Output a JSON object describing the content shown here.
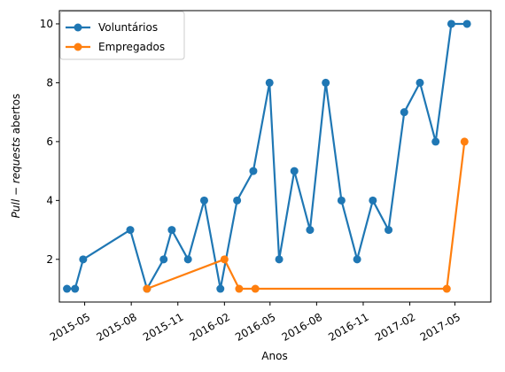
{
  "chart_data": {
    "type": "line",
    "xlabel": "Anos",
    "ylabel_italic": "Pull − requests",
    "ylabel_rest": " abertos",
    "x_ticks": [
      "2015-05",
      "2015-08",
      "2015-11",
      "2016-02",
      "2016-05",
      "2016-08",
      "2016-11",
      "2017-02",
      "2017-05"
    ],
    "y_ticks": [
      "2",
      "4",
      "6",
      "8",
      "10"
    ],
    "xlim": [
      "2015-03-12",
      "2017-07-11"
    ],
    "ylim": [
      0.55,
      10.45
    ],
    "legend_position": "top-left",
    "grid": false,
    "series": [
      {
        "name": "Voluntários",
        "color": "#1f77b4",
        "points": [
          [
            "2015-03-27",
            1
          ],
          [
            "2015-04-12",
            1
          ],
          [
            "2015-04-28",
            2
          ],
          [
            "2015-07-30",
            3
          ],
          [
            "2015-09-01",
            1
          ],
          [
            "2015-10-04",
            2
          ],
          [
            "2015-10-20",
            3
          ],
          [
            "2015-11-21",
            2
          ],
          [
            "2015-12-23",
            4
          ],
          [
            "2016-01-24",
            1
          ],
          [
            "2016-02-26",
            4
          ],
          [
            "2016-03-29",
            5
          ],
          [
            "2016-04-30",
            8
          ],
          [
            "2016-05-19",
            2
          ],
          [
            "2016-06-18",
            5
          ],
          [
            "2016-07-19",
            3
          ],
          [
            "2016-08-19",
            8
          ],
          [
            "2016-09-19",
            4
          ],
          [
            "2016-10-20",
            2
          ],
          [
            "2016-11-20",
            4
          ],
          [
            "2016-12-21",
            3
          ],
          [
            "2017-01-21",
            7
          ],
          [
            "2017-02-21",
            8
          ],
          [
            "2017-03-24",
            6
          ],
          [
            "2017-04-24",
            10
          ],
          [
            "2017-05-25",
            10
          ]
        ]
      },
      {
        "name": "Empregados",
        "color": "#ff7f0e",
        "points": [
          [
            "2015-09-01",
            1
          ],
          [
            "2016-02-01",
            2
          ],
          [
            "2016-03-01",
            1
          ],
          [
            "2016-04-02",
            1
          ],
          [
            "2017-04-15",
            1
          ],
          [
            "2017-05-20",
            6
          ]
        ]
      }
    ]
  }
}
